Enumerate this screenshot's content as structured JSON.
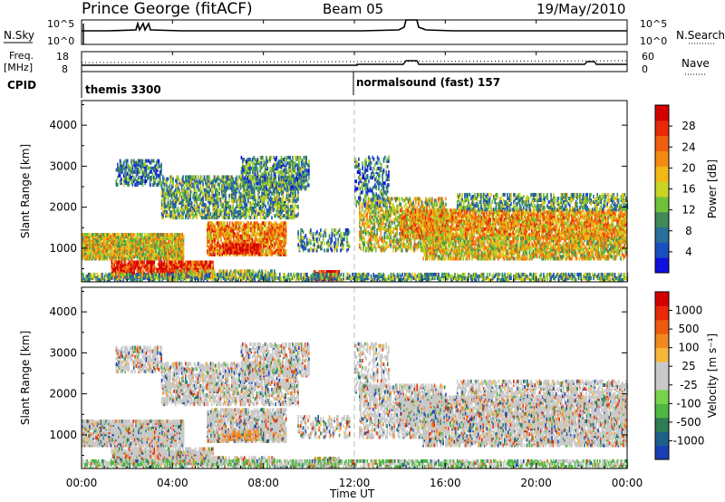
{
  "header": {
    "station": "Prince George (fitACF)",
    "beam": "Beam 05",
    "date": "19/May/2010"
  },
  "top_panels": {
    "nsky_label": "N.Sky",
    "nsearch_label": "N.Search",
    "freq_label_1": "Freq.",
    "freq_label_2": "[MHz]",
    "nave_label": "Nave",
    "cpid_label": "CPID",
    "noise_tick_top": "10^5",
    "noise_tick_bottom": "10^0",
    "freq_tick_top": "18",
    "freq_tick_bottom": "8",
    "nave_tick_top": "60",
    "nave_tick_bottom": "0",
    "cpid_segments": [
      {
        "start_hour": 0,
        "label": "themis 3300"
      },
      {
        "start_hour": 12,
        "label": "normalsound (fast) 157"
      }
    ]
  },
  "x_axis": {
    "label": "Time UT",
    "ticks": [
      "00:00",
      "04:00",
      "08:00",
      "12:00",
      "16:00",
      "20:00",
      "00:00"
    ]
  },
  "chart_data": [
    {
      "type": "heatmap",
      "parameter": "power",
      "x_range_hours": [
        0,
        24
      ],
      "ylabel": "Slant Range [km]",
      "ylim": [
        180,
        4600
      ],
      "y_ticks": [
        1000,
        2000,
        3000,
        4000
      ],
      "colorbar": {
        "label": "Power [dB]",
        "ticks": [
          "4",
          "8",
          "12",
          "16",
          "20",
          "24",
          "28"
        ],
        "colors": [
          "#1010e0",
          "#1a4fc0",
          "#2a6e9a",
          "#3f8a58",
          "#6ec23a",
          "#c9d423",
          "#f2b814",
          "#f38a12",
          "#f05f10",
          "#e82a0a",
          "#d40000"
        ]
      }
    },
    {
      "type": "heatmap",
      "parameter": "velocity",
      "x_range_hours": [
        0,
        24
      ],
      "ylabel": "Slant Range [km]",
      "ylim": [
        180,
        4600
      ],
      "y_ticks": [
        1000,
        2000,
        3000,
        4000
      ],
      "colorbar": {
        "label": "Velocity [m s⁻¹]",
        "ticks": [
          "1000",
          "500",
          "100",
          "25",
          "-25",
          "-100",
          "-500",
          "-1000"
        ],
        "colors": [
          "#1a3fb4",
          "#1f5f8a",
          "#2f7d52",
          "#4fb840",
          "#78d24c",
          "#c9c9c9",
          "#c9c9c9",
          "#f6b83a",
          "#f08a20",
          "#f05a10",
          "#e82a0a",
          "#d40000"
        ]
      }
    }
  ]
}
